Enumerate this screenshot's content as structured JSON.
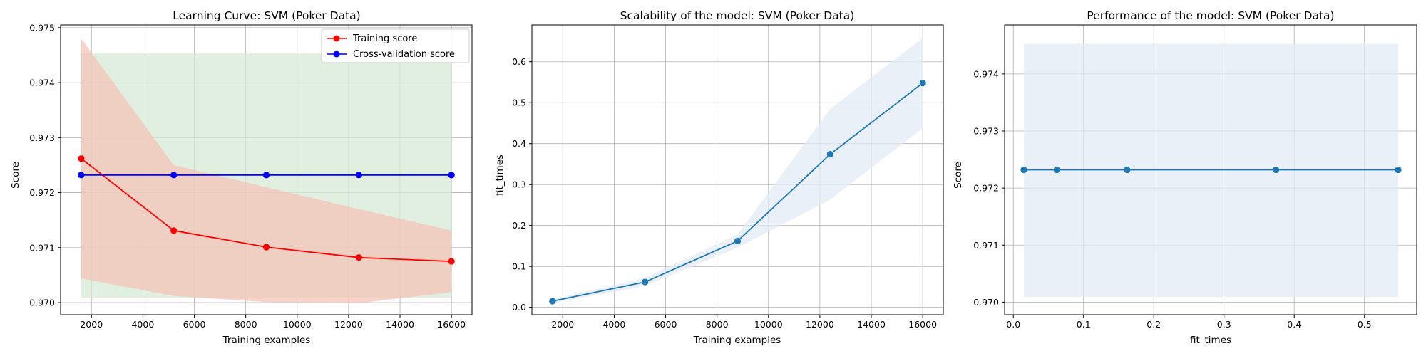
{
  "chart_data": [
    {
      "type": "line",
      "title": "Learning Curve: SVM (Poker Data)",
      "xlabel": "Training examples",
      "ylabel": "Score",
      "xlim": [
        800,
        16800
      ],
      "ylim": [
        0.96978,
        0.97505
      ],
      "xticks": [
        2000,
        4000,
        6000,
        8000,
        10000,
        12000,
        14000,
        16000
      ],
      "yticks": [
        0.97,
        0.971,
        0.972,
        0.973,
        0.974,
        0.975
      ],
      "xtick_labels": [
        "2000",
        "4000",
        "6000",
        "8000",
        "10000",
        "12000",
        "14000",
        "16000"
      ],
      "ytick_labels": [
        "0.970",
        "0.971",
        "0.972",
        "0.973",
        "0.974",
        "0.975"
      ],
      "grid": true,
      "legend": {
        "position": "top-right",
        "entries": [
          "Training score",
          "Cross-validation score"
        ]
      },
      "x": [
        1600,
        5200,
        8800,
        12400,
        16000
      ],
      "series": [
        {
          "name": "Training score",
          "color": "#ff0000",
          "values": [
            0.97262,
            0.97131,
            0.97101,
            0.97082,
            0.97075
          ],
          "band_upper": [
            0.9748,
            0.9725,
            0.9721,
            0.9717,
            0.97131
          ],
          "band_lower": [
            0.97044,
            0.97012,
            0.97001,
            0.96999,
            0.97019
          ],
          "band_color": "#f4c4b8"
        },
        {
          "name": "Cross-validation score",
          "color": "#0000ff",
          "values": [
            0.97232,
            0.97232,
            0.97232,
            0.97232,
            0.97232
          ],
          "band_upper": [
            0.97453,
            0.97453,
            0.97453,
            0.97453,
            0.97453
          ],
          "band_lower": [
            0.97009,
            0.97009,
            0.97009,
            0.97009,
            0.97009
          ],
          "band_color": "#d5ead5"
        }
      ]
    },
    {
      "type": "line",
      "title": "Scalability of the model: SVM (Poker Data)",
      "xlabel": "Training examples",
      "ylabel": "fit_times",
      "xlim": [
        800,
        16800
      ],
      "ylim": [
        -0.018,
        0.69
      ],
      "xticks": [
        2000,
        4000,
        6000,
        8000,
        10000,
        12000,
        14000,
        16000
      ],
      "yticks": [
        0.0,
        0.1,
        0.2,
        0.3,
        0.4,
        0.5,
        0.6
      ],
      "xtick_labels": [
        "2000",
        "4000",
        "6000",
        "8000",
        "10000",
        "12000",
        "14000",
        "16000"
      ],
      "ytick_labels": [
        "0.0",
        "0.1",
        "0.2",
        "0.3",
        "0.4",
        "0.5",
        "0.6"
      ],
      "grid": true,
      "x": [
        1600,
        5200,
        8800,
        12400,
        16000
      ],
      "series": [
        {
          "color": "#1f77b4",
          "values": [
            0.015,
            0.062,
            0.162,
            0.374,
            0.548
          ],
          "band_upper": [
            0.02,
            0.072,
            0.178,
            0.485,
            0.658
          ],
          "band_lower": [
            0.01,
            0.052,
            0.146,
            0.263,
            0.438
          ],
          "band_color": "#e2ebf5"
        }
      ]
    },
    {
      "type": "line",
      "title": "Performance of the model: SVM (Poker Data)",
      "xlabel": "fit_times",
      "ylabel": "Score",
      "xlim": [
        -0.0124,
        0.5744
      ],
      "ylim": [
        0.96978,
        0.97486
      ],
      "xticks": [
        0.0,
        0.1,
        0.2,
        0.3,
        0.4,
        0.5
      ],
      "yticks": [
        0.97,
        0.971,
        0.972,
        0.973,
        0.974
      ],
      "xtick_labels": [
        "0.0",
        "0.1",
        "0.2",
        "0.3",
        "0.4",
        "0.5"
      ],
      "ytick_labels": [
        "0.970",
        "0.971",
        "0.972",
        "0.973",
        "0.974"
      ],
      "grid": true,
      "x": [
        0.015,
        0.062,
        0.162,
        0.374,
        0.548
      ],
      "series": [
        {
          "color": "#1f77b4",
          "values": [
            0.97232,
            0.97232,
            0.97232,
            0.97232,
            0.97232
          ],
          "band_upper": [
            0.97453,
            0.97453,
            0.97453,
            0.97453,
            0.97453
          ],
          "band_lower": [
            0.97009,
            0.97009,
            0.97009,
            0.97009,
            0.97009
          ],
          "band_color": "#e2ebf5"
        }
      ]
    }
  ]
}
